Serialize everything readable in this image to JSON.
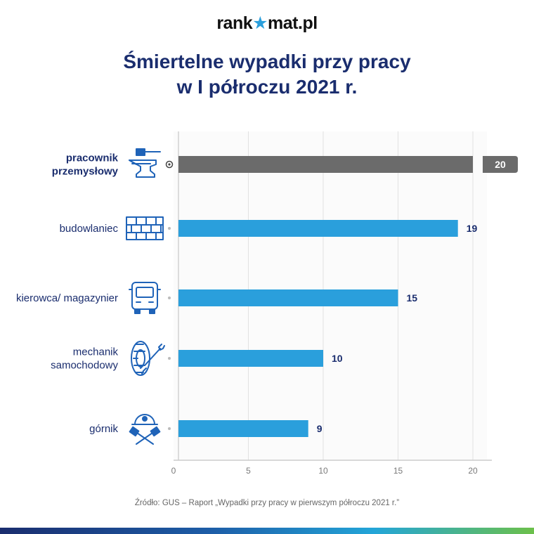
{
  "brand": {
    "logo_text": "rank",
    "logo_dot": "★",
    "logo_text2": "mat.pl"
  },
  "title": {
    "line1": "Śmiertelne wypadki przy pracy",
    "line2": "w I półroczu 2021 r."
  },
  "source": "Źródło: GUS – Raport „Wypadki przy pracy w pierwszym półroczu 2021 r.”",
  "colors": {
    "bar": "#2a9fdc",
    "highlight": "#6b6b6b",
    "label": "#1a2d6e",
    "value": "#1a2d6e"
  },
  "chart_data": {
    "type": "bar",
    "orientation": "horizontal",
    "categories": [
      [
        "pracownik",
        "przemysłowy"
      ],
      [
        "budowlaniec"
      ],
      [
        "kierowca/ magazynier"
      ],
      [
        "mechanik",
        "samochodowy"
      ],
      [
        "górnik"
      ]
    ],
    "icons": [
      "anvil-hammer-icon",
      "brick-wall-icon",
      "truck-icon",
      "tire-wrench-icon",
      "miner-helmet-pickaxe-icon"
    ],
    "values": [
      20,
      19,
      15,
      10,
      9
    ],
    "highlight_index": 0,
    "xlim": [
      0,
      20
    ],
    "xticks": [
      0,
      5,
      10,
      15,
      20
    ],
    "grid": true
  }
}
